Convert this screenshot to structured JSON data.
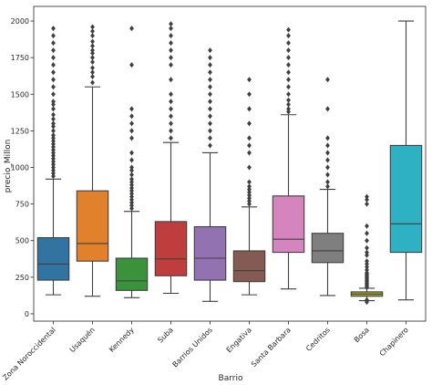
{
  "chart_data": {
    "type": "boxplot",
    "xlabel": "Barrio",
    "ylabel": "precio_Millon",
    "ylim": [
      0,
      2000
    ],
    "yticks": [
      0,
      250,
      500,
      750,
      1000,
      1250,
      1500,
      1750,
      2000
    ],
    "yticklabels": [
      "0",
      "250",
      "500",
      "750",
      "1000",
      "1250",
      "1500",
      "1750",
      "2000"
    ],
    "grid": false,
    "boxes": [
      {
        "category": "Zona Noroccidental",
        "color": "#3274a1",
        "whisker_low": 130,
        "q1": 230,
        "median": 340,
        "q3": 520,
        "whisker_high": 920,
        "outliers": [
          940,
          960,
          980,
          1000,
          1020,
          1040,
          1060,
          1080,
          1100,
          1120,
          1140,
          1160,
          1180,
          1200,
          1220,
          1250,
          1280,
          1300,
          1330,
          1360,
          1400,
          1430,
          1450,
          1500,
          1550,
          1600,
          1650,
          1700,
          1750,
          1800,
          1850,
          1900,
          1950
        ]
      },
      {
        "category": "Usaquén",
        "color": "#e1812c",
        "whisker_low": 120,
        "q1": 360,
        "median": 480,
        "q3": 840,
        "whisker_high": 1550,
        "outliers": [
          1580,
          1620,
          1650,
          1680,
          1720,
          1750,
          1780,
          1800,
          1830,
          1860,
          1900,
          1930,
          1960
        ]
      },
      {
        "category": "Kennedy",
        "color": "#3a923a",
        "whisker_low": 110,
        "q1": 160,
        "median": 225,
        "q3": 380,
        "whisker_high": 700,
        "outliers": [
          720,
          740,
          760,
          780,
          800,
          820,
          840,
          860,
          880,
          900,
          920,
          950,
          980,
          1000,
          1050,
          1100,
          1200,
          1250,
          1300,
          1350,
          1400,
          1700,
          1950
        ]
      },
      {
        "category": "Suba",
        "color": "#c03d3e",
        "whisker_low": 140,
        "q1": 260,
        "median": 375,
        "q3": 630,
        "whisker_high": 1170,
        "outliers": [
          1200,
          1250,
          1300,
          1350,
          1400,
          1450,
          1500,
          1600,
          1700,
          1750,
          1800,
          1850,
          1900,
          1950,
          1980
        ]
      },
      {
        "category": "Barrios Unidos",
        "color": "#9372b2",
        "whisker_low": 85,
        "q1": 230,
        "median": 380,
        "q3": 595,
        "whisker_high": 1100,
        "outliers": [
          1150,
          1200,
          1250,
          1300,
          1350,
          1400,
          1450,
          1500,
          1550,
          1600,
          1650,
          1700,
          1750,
          1800
        ]
      },
      {
        "category": "Engativa",
        "color": "#845b53",
        "whisker_low": 130,
        "q1": 220,
        "median": 295,
        "q3": 430,
        "whisker_high": 730,
        "outliers": [
          750,
          770,
          790,
          810,
          830,
          850,
          870,
          900,
          1000,
          1100,
          1150,
          1200,
          1300,
          1400,
          1500,
          1600
        ]
      },
      {
        "category": "Santa Barbara",
        "color": "#d684bd",
        "whisker_low": 170,
        "q1": 420,
        "median": 510,
        "q3": 805,
        "whisker_high": 1360,
        "outliers": [
          1380,
          1400,
          1430,
          1460,
          1500,
          1550,
          1600,
          1650,
          1700,
          1750,
          1800,
          1850,
          1900,
          1940
        ]
      },
      {
        "category": "Cedritos",
        "color": "#7f7f7f",
        "whisker_low": 125,
        "q1": 350,
        "median": 430,
        "q3": 550,
        "whisker_high": 850,
        "outliers": [
          870,
          900,
          950,
          1000,
          1050,
          1100,
          1150,
          1200,
          1400,
          1600
        ]
      },
      {
        "category": "Bosa",
        "color": "#a9aa35",
        "whisker_low": 90,
        "q1": 120,
        "median": 135,
        "q3": 150,
        "whisker_high": 175,
        "outliers": [
          80,
          95,
          180,
          190,
          200,
          210,
          220,
          230,
          240,
          250,
          260,
          270,
          280,
          300,
          320,
          340,
          360,
          400,
          420,
          450,
          500,
          550,
          600,
          750,
          780,
          800
        ]
      },
      {
        "category": "Chapinero",
        "color": "#2eb1c2",
        "whisker_low": 95,
        "q1": 420,
        "median": 615,
        "q3": 1150,
        "whisker_high": 2000,
        "outliers": []
      }
    ]
  }
}
